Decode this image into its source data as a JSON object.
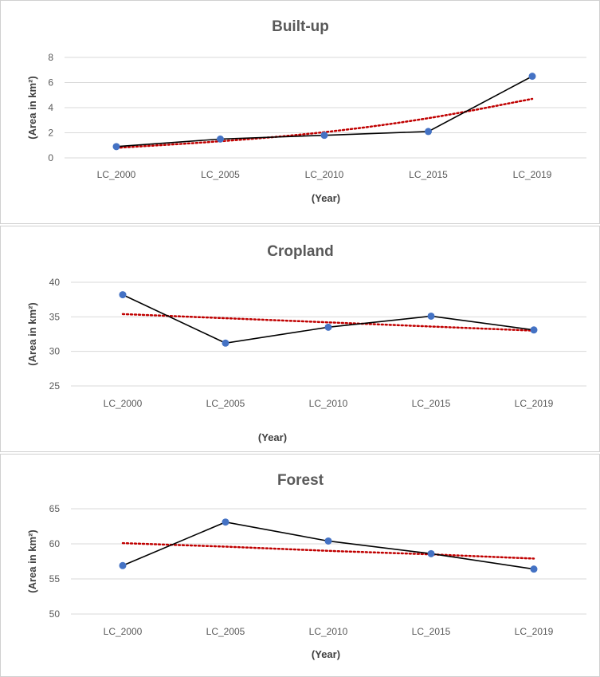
{
  "chart_data": [
    {
      "type": "line",
      "title": "Built-up",
      "xlabel": "(Year)",
      "ylabel": "(Area in km²)",
      "categories": [
        "LC_2000",
        "LC_2005",
        "LC_2010",
        "LC_2015",
        "LC_2019"
      ],
      "series": [
        {
          "values": [
            0.9,
            1.5,
            1.8,
            2.1,
            6.5
          ],
          "color": "#000000",
          "marker_color": "#4472c4"
        }
      ],
      "trendline": {
        "type": "polynomial",
        "values": [
          0.8,
          1.3,
          2.0,
          3.1,
          4.7
        ],
        "color": "#c00000",
        "style": "dotted"
      },
      "ylim": [
        0,
        8
      ],
      "yticks": [
        0,
        2,
        4,
        6,
        8
      ],
      "grid": true
    },
    {
      "type": "line",
      "title": "Cropland",
      "xlabel": "(Year)",
      "ylabel": "(Area in km²)",
      "categories": [
        "LC_2000",
        "LC_2005",
        "LC_2010",
        "LC_2015",
        "LC_2019"
      ],
      "series": [
        {
          "values": [
            38.2,
            31.2,
            33.5,
            35.1,
            33.1
          ],
          "color": "#000000",
          "marker_color": "#4472c4"
        }
      ],
      "trendline": {
        "type": "linear",
        "values": [
          35.4,
          34.8,
          34.2,
          33.6,
          33.0
        ],
        "color": "#c00000",
        "style": "dotted"
      },
      "ylim": [
        25,
        40
      ],
      "yticks": [
        25,
        30,
        35,
        40
      ],
      "grid": true
    },
    {
      "type": "line",
      "title": "Forest",
      "xlabel": "(Year)",
      "ylabel": "(Area in km²)",
      "categories": [
        "LC_2000",
        "LC_2005",
        "LC_2010",
        "LC_2015",
        "LC_2019"
      ],
      "series": [
        {
          "values": [
            56.9,
            63.1,
            60.4,
            58.6,
            56.4
          ],
          "color": "#000000",
          "marker_color": "#4472c4"
        }
      ],
      "trendline": {
        "type": "linear",
        "values": [
          60.1,
          59.6,
          59.0,
          58.5,
          57.9
        ],
        "color": "#c00000",
        "style": "dotted"
      },
      "ylim": [
        50,
        65
      ],
      "yticks": [
        50,
        55,
        60,
        65
      ],
      "grid": true
    }
  ]
}
